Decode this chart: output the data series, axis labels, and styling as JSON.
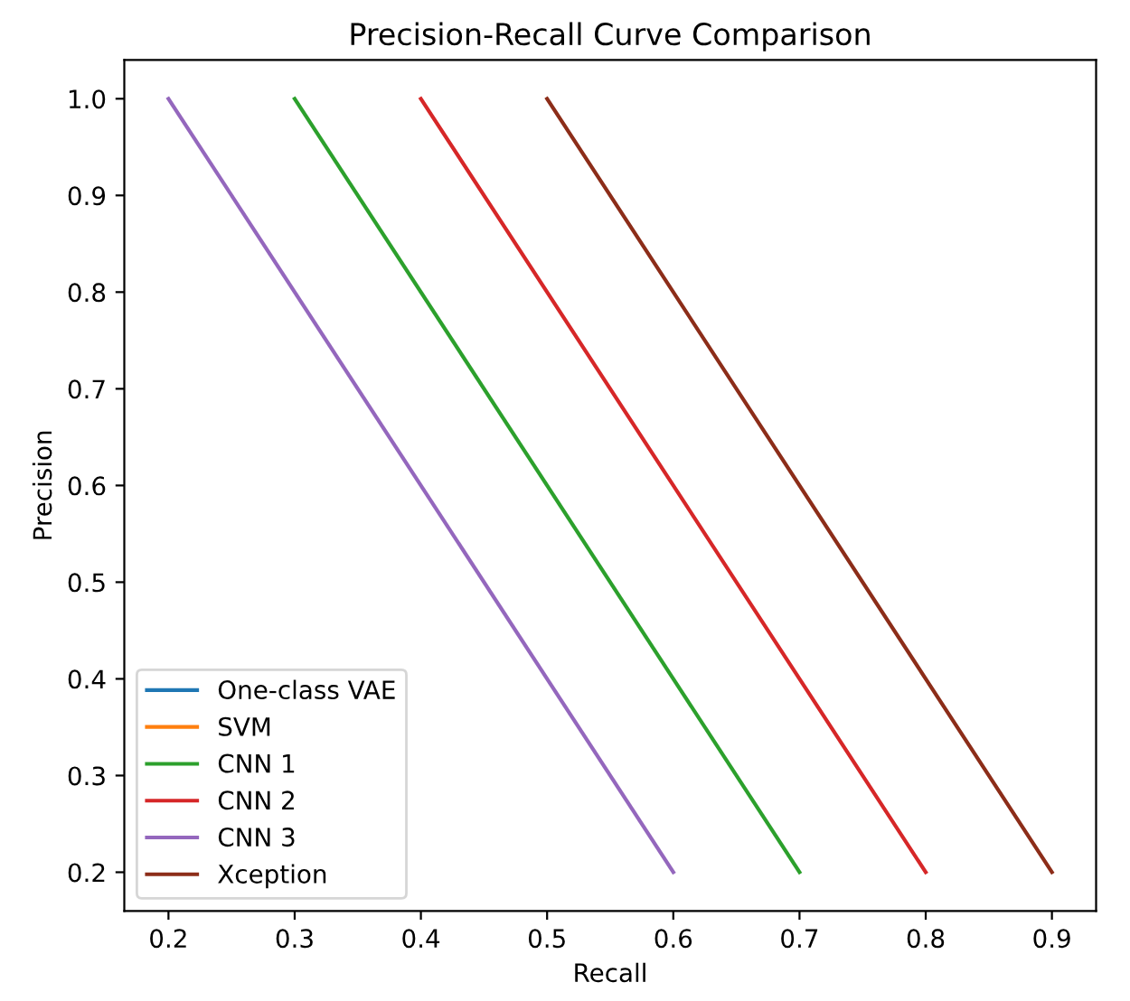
{
  "chart_data": {
    "type": "line",
    "title": "Precision-Recall Curve Comparison",
    "xlabel": "Recall",
    "ylabel": "Precision",
    "series": [
      {
        "name": "One-class VAE",
        "color": "#1f77b4"
      },
      {
        "name": "SVM",
        "color": "#ff7f0e"
      },
      {
        "name": "CNN 1",
        "color": "#2ca02c",
        "x": [
          0.3,
          0.7
        ],
        "values": [
          1.0,
          0.2
        ]
      },
      {
        "name": "CNN 2",
        "color": "#d62728",
        "x": [
          0.4,
          0.8
        ],
        "values": [
          1.0,
          0.2
        ]
      },
      {
        "name": "CNN 3",
        "color": "#9467bd",
        "x": [
          0.2,
          0.6
        ],
        "values": [
          1.0,
          0.2
        ]
      },
      {
        "name": "Xception",
        "color": "#8c2d19",
        "x": [
          0.5,
          0.9
        ],
        "values": [
          1.0,
          0.2
        ]
      }
    ],
    "xlim": [
      0.165,
      0.935
    ],
    "ylim": [
      0.16,
      1.04
    ],
    "xticks": [
      0.2,
      0.3,
      0.4,
      0.5,
      0.6,
      0.7,
      0.8,
      0.9
    ],
    "yticks": [
      0.2,
      0.3,
      0.4,
      0.5,
      0.6,
      0.7,
      0.8,
      0.9,
      {
        "value": 1,
        "label": "1.0"
      }
    ],
    "legend": "bottom left",
    "grid": false,
    "marker": "none",
    "line_style": "solid"
  }
}
